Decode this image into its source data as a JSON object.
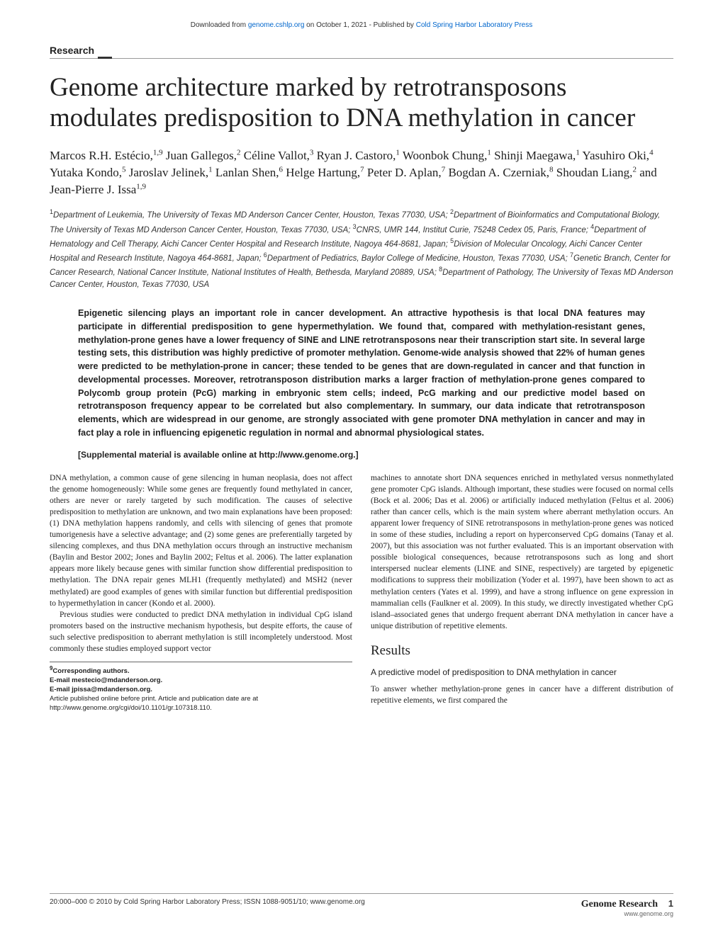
{
  "header": {
    "downloaded_prefix": "Downloaded from ",
    "site_link": "genome.cshlp.org",
    "date_text": " on October 1, 2021 - Published by ",
    "publisher_link": "Cold Spring Harbor Laboratory Press"
  },
  "section_label": "Research",
  "title": "Genome architecture marked by retrotransposons modulates predisposition to DNA methylation in cancer",
  "authors_html": "Marcos R.H. Estécio,<sup>1,9</sup> Juan Gallegos,<sup>2</sup> Céline Vallot,<sup>3</sup> Ryan J. Castoro,<sup>1</sup> Woonbok Chung,<sup>1</sup> Shinji Maegawa,<sup>1</sup> Yasuhiro Oki,<sup>4</sup> Yutaka Kondo,<sup>5</sup> Jaroslav Jelinek,<sup>1</sup> Lanlan Shen,<sup>6</sup> Helge Hartung,<sup>7</sup> Peter D. Aplan,<sup>7</sup> Bogdan A. Czerniak,<sup>8</sup> Shoudan Liang,<sup>2</sup> and Jean-Pierre J. Issa<sup>1,9</sup>",
  "affiliations_html": "<sup>1</sup>Department of Leukemia, The University of Texas MD Anderson Cancer Center, Houston, Texas 77030, USA; <sup>2</sup>Department of Bioinformatics and Computational Biology, The University of Texas MD Anderson Cancer Center, Houston, Texas 77030, USA; <sup>3</sup>CNRS, UMR 144, Institut Curie, 75248 Cedex 05, Paris, France; <sup>4</sup>Department of Hematology and Cell Therapy, Aichi Cancer Center Hospital and Research Institute, Nagoya 464-8681, Japan; <sup>5</sup>Division of Molecular Oncology, Aichi Cancer Center Hospital and Research Institute, Nagoya 464-8681, Japan; <sup>6</sup>Department of Pediatrics, Baylor College of Medicine, Houston, Texas 77030, USA; <sup>7</sup>Genetic Branch, Center for Cancer Research, National Cancer Institute, National Institutes of Health, Bethesda, Maryland 20889, USA; <sup>8</sup>Department of Pathology, The University of Texas MD Anderson Cancer Center, Houston, Texas 77030, USA",
  "abstract": "Epigenetic silencing plays an important role in cancer development. An attractive hypothesis is that local DNA features may participate in differential predisposition to gene hypermethylation. We found that, compared with methylation-resistant genes, methylation-prone genes have a lower frequency of SINE and LINE retrotransposons near their transcription start site. In several large testing sets, this distribution was highly predictive of promoter methylation. Genome-wide analysis showed that 22% of human genes were predicted to be methylation-prone in cancer; these tended to be genes that are down-regulated in cancer and that function in developmental processes. Moreover, retrotransposon distribution marks a larger fraction of methylation-prone genes compared to Polycomb group protein (PcG) marking in embryonic stem cells; indeed, PcG marking and our predictive model based on retrotransposon frequency appear to be correlated but also complementary. In summary, our data indicate that retrotransposon elements, which are widespread in our genome, are strongly associated with gene promoter DNA methylation in cancer and may in fact play a role in influencing epigenetic regulation in normal and abnormal physiological states.",
  "supplemental": "[Supplemental material is available online at http://www.genome.org.]",
  "body": {
    "left": {
      "p1": "DNA methylation, a common cause of gene silencing in human neoplasia, does not affect the genome homogeneously: While some genes are frequently found methylated in cancer, others are never or rarely targeted by such modification. The causes of selective predisposition to methylation are unknown, and two main explanations have been proposed: (1) DNA methylation happens randomly, and cells with silencing of genes that promote tumorigenesis have a selective advantage; and (2) some genes are preferentially targeted by silencing complexes, and thus DNA methylation occurs through an instructive mechanism (Baylin and Bestor 2002; Jones and Baylin 2002; Feltus et al. 2006). The latter explanation appears more likely because genes with similar function show differential predisposition to methylation. The DNA repair genes MLH1 (frequently methylated) and MSH2 (never methylated) are good examples of genes with similar function but differential predisposition to hypermethylation in cancer (Kondo et al. 2000).",
      "p2": "Previous studies were conducted to predict DNA methylation in individual CpG island promoters based on the instructive mechanism hypothesis, but despite efforts, the cause of such selective predisposition to aberrant methylation is still incompletely understood. Most commonly these studies employed support vector",
      "corresponding_label": "9Corresponding authors.",
      "email1": "E-mail mestecio@mdanderson.org.",
      "email2": "E-mail jpissa@mdanderson.org.",
      "pub_note": "Article published online before print. Article and publication date are at http://www.genome.org/cgi/doi/10.1101/gr.107318.110."
    },
    "right": {
      "p1": "machines to annotate short DNA sequences enriched in methylated versus nonmethylated gene promoter CpG islands. Although important, these studies were focused on normal cells (Bock et al. 2006; Das et al. 2006) or artificially induced methylation (Feltus et al. 2006) rather than cancer cells, which is the main system where aberrant methylation occurs. An apparent lower frequency of SINE retrotransposons in methylation-prone genes was noticed in some of these studies, including a report on hyperconserved CpG domains (Tanay et al. 2007), but this association was not further evaluated. This is an important observation with possible biological consequences, because retrotransposons such as long and short interspersed nuclear elements (LINE and SINE, respectively) are targeted by epigenetic modifications to suppress their mobilization (Yoder et al. 1997), have been shown to act as methylation centers (Yates et al. 1999), and have a strong influence on gene expression in mammalian cells (Faulkner et al. 2009). In this study, we directly investigated whether CpG island–associated genes that undergo frequent aberrant DNA methylation in cancer have a unique distribution of repetitive elements.",
      "results_heading": "Results",
      "subheading": "A predictive model of predisposition to DNA methylation in cancer",
      "p2": "To answer whether methylation-prone genes in cancer have a different distribution of repetitive elements, we first compared the"
    }
  },
  "footer": {
    "left": "20:000–000 © 2010 by Cold Spring Harbor Laboratory Press; ISSN 1088-9051/10; www.genome.org",
    "journal": "Genome Research",
    "page": "1",
    "url": "www.genome.org"
  }
}
